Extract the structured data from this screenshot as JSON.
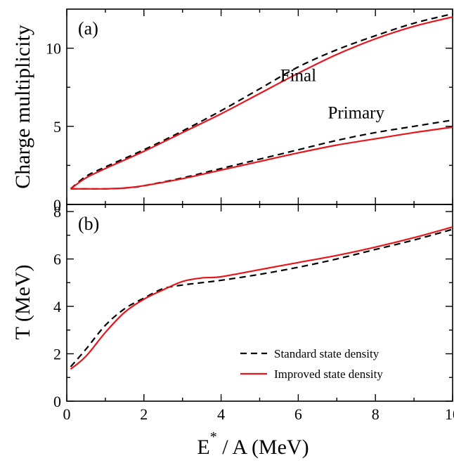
{
  "chart_data": [
    {
      "id": "a",
      "type": "line",
      "panel_label": "(a)",
      "xlabel": "",
      "ylabel": "Charge multiplicity",
      "xlim": [
        0,
        10
      ],
      "ylim": [
        0,
        12.5
      ],
      "xticks": [
        0,
        2,
        4,
        6,
        8,
        10
      ],
      "yticks": [
        0,
        5,
        10
      ],
      "ytick_labels": [
        "0",
        "5",
        "10"
      ],
      "grid": false,
      "annotations": [
        {
          "text": "Final",
          "x": 6.0,
          "y": 7.9
        },
        {
          "text": "Primary",
          "x": 7.5,
          "y": 5.5
        }
      ],
      "series": [
        {
          "name": "Standard state density",
          "group": "Final",
          "color": "#000000",
          "dash": "dashed",
          "x": [
            0.1,
            0.5,
            1,
            2,
            3,
            4,
            5,
            6,
            7,
            8,
            9,
            10
          ],
          "y": [
            1.0,
            1.8,
            2.4,
            3.5,
            4.7,
            6.0,
            7.4,
            8.8,
            9.9,
            10.8,
            11.6,
            12.2
          ]
        },
        {
          "name": "Improved state density",
          "group": "Final",
          "color": "#e8161b",
          "dash": "solid",
          "x": [
            0.1,
            0.5,
            1,
            2,
            3,
            4,
            5,
            6,
            7,
            8,
            9,
            10
          ],
          "y": [
            1.0,
            1.7,
            2.3,
            3.4,
            4.6,
            5.8,
            7.1,
            8.4,
            9.6,
            10.6,
            11.4,
            12.0
          ]
        },
        {
          "name": "Standard state density",
          "group": "Primary",
          "color": "#000000",
          "dash": "dashed",
          "x": [
            0.1,
            0.5,
            1,
            1.5,
            2,
            3,
            4,
            5,
            6,
            7,
            8,
            9,
            10
          ],
          "y": [
            1.0,
            1.0,
            1.0,
            1.05,
            1.2,
            1.7,
            2.3,
            2.9,
            3.5,
            4.1,
            4.6,
            5.0,
            5.4
          ]
        },
        {
          "name": "Improved state density",
          "group": "Primary",
          "color": "#e8161b",
          "dash": "solid",
          "x": [
            0.1,
            0.5,
            1,
            1.5,
            2,
            3,
            4,
            5,
            6,
            7,
            8,
            9,
            10
          ],
          "y": [
            1.0,
            1.0,
            1.0,
            1.05,
            1.2,
            1.65,
            2.2,
            2.75,
            3.3,
            3.8,
            4.2,
            4.6,
            4.95
          ]
        }
      ]
    },
    {
      "id": "b",
      "type": "line",
      "panel_label": "(b)",
      "xlabel": "E* / A (MeV)",
      "xlabel_main": "E",
      "xlabel_sup": "*",
      "xlabel_rest": " / A (MeV)",
      "ylabel": "T (MeV)",
      "xlim": [
        0,
        10
      ],
      "ylim": [
        0,
        8.3
      ],
      "xticks": [
        0,
        2,
        4,
        6,
        8,
        10
      ],
      "xtick_labels": [
        "0",
        "2",
        "4",
        "6",
        "8",
        "10"
      ],
      "yticks": [
        0,
        2,
        4,
        6,
        8
      ],
      "ytick_labels": [
        "0",
        "2",
        "4",
        "6",
        "8"
      ],
      "grid": false,
      "legend": {
        "position": "bottom-right",
        "entries": [
          "Standard state density",
          "Improved state density"
        ]
      },
      "series": [
        {
          "name": "Standard state density",
          "color": "#000000",
          "dash": "dashed",
          "x": [
            0.1,
            0.5,
            1,
            1.5,
            2,
            2.5,
            3,
            3.5,
            4,
            5,
            6,
            7,
            8,
            9,
            10
          ],
          "y": [
            1.45,
            2.2,
            3.2,
            3.9,
            4.35,
            4.75,
            4.9,
            5.0,
            5.1,
            5.35,
            5.65,
            6.0,
            6.4,
            6.8,
            7.25
          ]
        },
        {
          "name": "Improved state density",
          "color": "#e8161b",
          "dash": "solid",
          "x": [
            0.1,
            0.5,
            1,
            1.5,
            2,
            2.5,
            3,
            3.5,
            4,
            5,
            6,
            7,
            8,
            9,
            10
          ],
          "y": [
            1.35,
            1.9,
            2.9,
            3.75,
            4.3,
            4.7,
            5.05,
            5.2,
            5.25,
            5.55,
            5.85,
            6.15,
            6.5,
            6.9,
            7.35
          ]
        }
      ]
    }
  ]
}
